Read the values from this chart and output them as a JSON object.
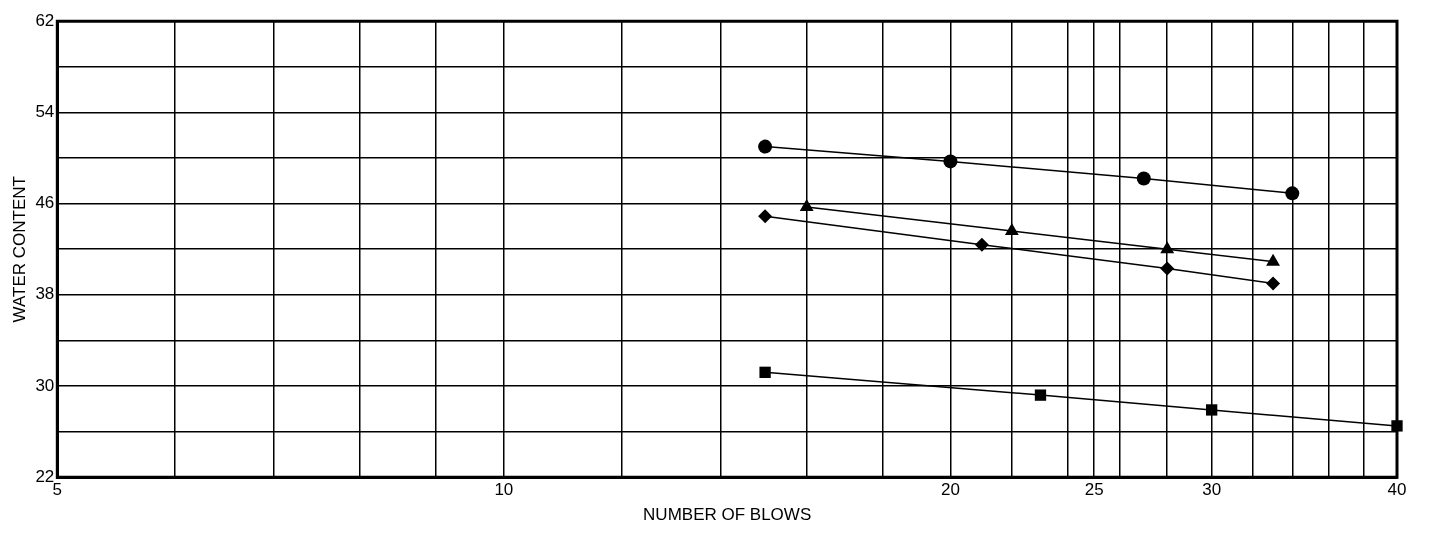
{
  "chart_data": {
    "type": "line",
    "xlabel": "NUMBER OF BLOWS",
    "ylabel": "WATER CONTENT",
    "log": "x",
    "grid": true,
    "legend": false,
    "line_style": "solid",
    "xlim": [
      5,
      40
    ],
    "xticks": [
      5,
      {
        "value": 6,
        "label": null
      },
      {
        "value": 7,
        "label": null
      },
      {
        "value": 8,
        "label": null
      },
      {
        "value": 9,
        "label": null
      },
      10,
      {
        "value": 12,
        "label": null
      },
      {
        "value": 14,
        "label": null
      },
      {
        "value": 16,
        "label": null
      },
      {
        "value": 18,
        "label": null
      },
      20,
      {
        "value": 22,
        "label": null
      },
      {
        "value": 24,
        "label": null
      },
      25,
      {
        "value": 26,
        "label": null
      },
      {
        "value": 28,
        "label": null
      },
      30,
      {
        "value": 32,
        "label": null
      },
      {
        "value": 34,
        "label": null
      },
      {
        "value": 36,
        "label": null
      },
      {
        "value": 38,
        "label": null
      },
      40
    ],
    "ylim": [
      22,
      62
    ],
    "yticks": [
      22,
      {
        "value": 26,
        "label": null
      },
      30,
      {
        "value": 34,
        "label": null
      },
      38,
      {
        "value": 42,
        "label": null
      },
      46,
      {
        "value": 50,
        "label": null
      },
      54,
      {
        "value": 58,
        "label": null
      },
      62
    ],
    "series": [
      {
        "marker": "circle",
        "color": "#000000",
        "x": [
          15,
          20,
          27,
          34
        ],
        "values": [
          51,
          49.7,
          48.2,
          46.9
        ]
      },
      {
        "marker": "triangle",
        "color": "#000000",
        "x": [
          16,
          22,
          28,
          33
        ],
        "values": [
          45.7,
          43.6,
          42,
          40.9
        ]
      },
      {
        "marker": "diamond",
        "color": "#000000",
        "x": [
          15,
          21,
          28,
          33
        ],
        "values": [
          44.9,
          42.4,
          40.3,
          39
        ]
      },
      {
        "marker": "square",
        "color": "#000000",
        "x": [
          15,
          23,
          30,
          40
        ],
        "values": [
          31.2,
          29.2,
          27.9,
          26.5
        ]
      }
    ]
  }
}
